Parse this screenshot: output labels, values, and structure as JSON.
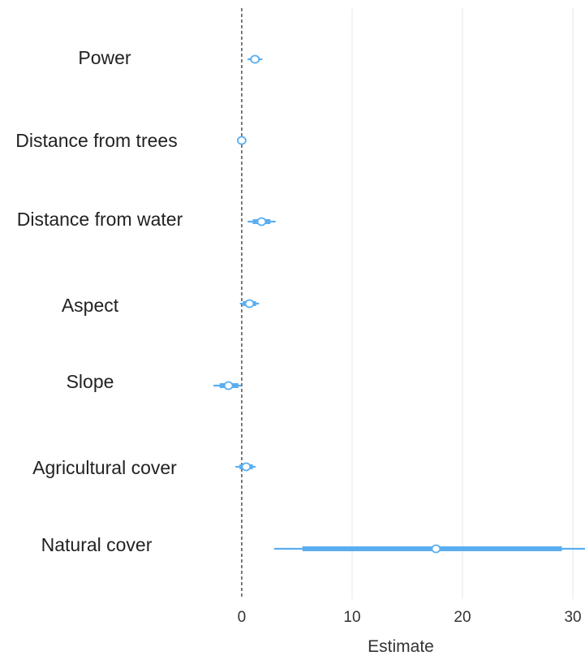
{
  "chart_data": {
    "type": "forest",
    "categories": [
      "Power",
      "Distance from trees",
      "Distance from water",
      "Aspect",
      "Slope",
      "Agricultural cover",
      "Natural cover"
    ],
    "estimates": [
      1.2,
      0.0,
      1.8,
      0.7,
      -1.2,
      0.4,
      17.6
    ],
    "inner_interval": [
      [
        0.8,
        1.6
      ],
      [
        -0.2,
        0.2
      ],
      [
        1.0,
        2.6
      ],
      [
        0.1,
        1.3
      ],
      [
        -2.0,
        -0.3
      ],
      [
        -0.2,
        1.0
      ],
      [
        5.5,
        29.0
      ]
    ],
    "outer_interval": [
      [
        0.6,
        1.8
      ],
      [
        -0.3,
        0.3
      ],
      [
        0.6,
        3.0
      ],
      [
        -0.1,
        1.5
      ],
      [
        -2.5,
        -0.1
      ],
      [
        -0.5,
        1.2
      ],
      [
        3.0,
        31.5
      ]
    ],
    "x_ticks": [
      "0",
      "10",
      "20",
      "30"
    ],
    "x_tick_values": [
      0,
      10,
      20,
      30
    ],
    "xlabel": "Estimate",
    "ylabel": "",
    "xlim": [
      -21.9,
      31.1
    ],
    "reference_line": 0,
    "grid": "vertical",
    "legend": "none",
    "colors": {
      "interval": "#5aaef0",
      "point_fill": "#ffffff",
      "reference_line": "#444444",
      "grid": "#e6e6e6"
    }
  }
}
